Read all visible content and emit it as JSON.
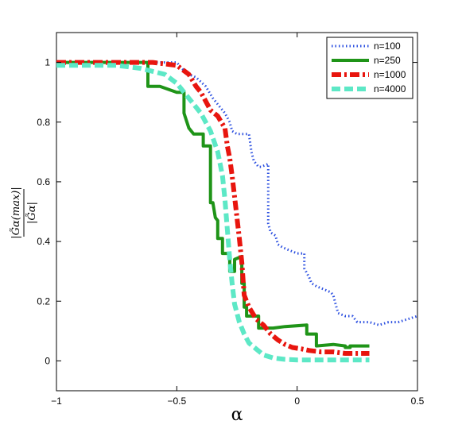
{
  "chart_data": {
    "type": "line",
    "title": "",
    "xlabel": "α",
    "ylabel": "|G̃α(max)| / |G̃α|",
    "xlim": [
      -1,
      0.5
    ],
    "ylim": [
      -0.1,
      1.1
    ],
    "xticks": [
      -1,
      -0.5,
      0,
      0.5
    ],
    "xtick_labels": [
      "−1",
      "−0.5",
      "0",
      "0.5"
    ],
    "yticks": [
      0,
      0.2,
      0.4,
      0.6,
      0.8,
      1
    ],
    "ytick_labels": [
      "0",
      "0.2",
      "0.4",
      "0.6",
      "0.8",
      "1"
    ],
    "grid": false,
    "legend_position": "top-right",
    "series": [
      {
        "name": "n=100",
        "color": "#2b4fe0",
        "style": "dotted",
        "points": [
          [
            -1.0,
            1.0
          ],
          [
            -0.5,
            1.0
          ],
          [
            -0.48,
            0.98
          ],
          [
            -0.45,
            0.96
          ],
          [
            -0.42,
            0.95
          ],
          [
            -0.38,
            0.92
          ],
          [
            -0.35,
            0.88
          ],
          [
            -0.32,
            0.85
          ],
          [
            -0.3,
            0.83
          ],
          [
            -0.28,
            0.8
          ],
          [
            -0.27,
            0.77
          ],
          [
            -0.25,
            0.76
          ],
          [
            -0.2,
            0.76
          ],
          [
            -0.19,
            0.7
          ],
          [
            -0.18,
            0.67
          ],
          [
            -0.17,
            0.66
          ],
          [
            -0.16,
            0.65
          ],
          [
            -0.15,
            0.65
          ],
          [
            -0.12,
            0.66
          ],
          [
            -0.12,
            0.46
          ],
          [
            -0.11,
            0.43
          ],
          [
            -0.09,
            0.42
          ],
          [
            -0.08,
            0.39
          ],
          [
            -0.06,
            0.38
          ],
          [
            -0.03,
            0.37
          ],
          [
            0.0,
            0.36
          ],
          [
            0.03,
            0.36
          ],
          [
            0.03,
            0.31
          ],
          [
            0.05,
            0.28
          ],
          [
            0.06,
            0.26
          ],
          [
            0.08,
            0.25
          ],
          [
            0.11,
            0.24
          ],
          [
            0.14,
            0.23
          ],
          [
            0.15,
            0.22
          ],
          [
            0.17,
            0.16
          ],
          [
            0.2,
            0.15
          ],
          [
            0.23,
            0.15
          ],
          [
            0.25,
            0.13
          ],
          [
            0.3,
            0.13
          ],
          [
            0.34,
            0.12
          ],
          [
            0.38,
            0.13
          ],
          [
            0.42,
            0.13
          ],
          [
            0.46,
            0.14
          ],
          [
            0.5,
            0.15
          ]
        ]
      },
      {
        "name": "n=250",
        "color": "#1f9418",
        "style": "solid",
        "points": [
          [
            -1.0,
            1.0
          ],
          [
            -0.62,
            1.0
          ],
          [
            -0.62,
            0.92
          ],
          [
            -0.57,
            0.92
          ],
          [
            -0.5,
            0.9
          ],
          [
            -0.47,
            0.9
          ],
          [
            -0.47,
            0.83
          ],
          [
            -0.45,
            0.78
          ],
          [
            -0.43,
            0.76
          ],
          [
            -0.39,
            0.76
          ],
          [
            -0.39,
            0.72
          ],
          [
            -0.36,
            0.72
          ],
          [
            -0.36,
            0.53
          ],
          [
            -0.35,
            0.53
          ],
          [
            -0.34,
            0.48
          ],
          [
            -0.33,
            0.47
          ],
          [
            -0.33,
            0.41
          ],
          [
            -0.31,
            0.41
          ],
          [
            -0.31,
            0.36
          ],
          [
            -0.28,
            0.36
          ],
          [
            -0.28,
            0.3
          ],
          [
            -0.26,
            0.3
          ],
          [
            -0.26,
            0.34
          ],
          [
            -0.23,
            0.35
          ],
          [
            -0.23,
            0.26
          ],
          [
            -0.22,
            0.26
          ],
          [
            -0.22,
            0.18
          ],
          [
            -0.21,
            0.18
          ],
          [
            -0.21,
            0.15
          ],
          [
            -0.16,
            0.15
          ],
          [
            -0.16,
            0.11
          ],
          [
            -0.1,
            0.11
          ],
          [
            -0.05,
            0.115
          ],
          [
            0.04,
            0.12
          ],
          [
            0.04,
            0.09
          ],
          [
            0.08,
            0.09
          ],
          [
            0.08,
            0.05
          ],
          [
            0.15,
            0.055
          ],
          [
            0.2,
            0.05
          ],
          [
            0.2,
            0.045
          ],
          [
            0.22,
            0.045
          ],
          [
            0.22,
            0.05
          ],
          [
            0.3,
            0.05
          ]
        ]
      },
      {
        "name": "n=1000",
        "color": "#e8150e",
        "style": "dashdot",
        "points": [
          [
            -1.0,
            1.0
          ],
          [
            -0.6,
            1.0
          ],
          [
            -0.5,
            0.99
          ],
          [
            -0.45,
            0.96
          ],
          [
            -0.42,
            0.92
          ],
          [
            -0.4,
            0.9
          ],
          [
            -0.38,
            0.87
          ],
          [
            -0.36,
            0.84
          ],
          [
            -0.33,
            0.82
          ],
          [
            -0.3,
            0.78
          ],
          [
            -0.29,
            0.72
          ],
          [
            -0.28,
            0.68
          ],
          [
            -0.27,
            0.62
          ],
          [
            -0.26,
            0.55
          ],
          [
            -0.25,
            0.48
          ],
          [
            -0.24,
            0.41
          ],
          [
            -0.23,
            0.33
          ],
          [
            -0.22,
            0.22
          ],
          [
            -0.2,
            0.18
          ],
          [
            -0.17,
            0.14
          ],
          [
            -0.14,
            0.12
          ],
          [
            -0.11,
            0.09
          ],
          [
            -0.08,
            0.07
          ],
          [
            -0.05,
            0.055
          ],
          [
            -0.02,
            0.045
          ],
          [
            0.02,
            0.04
          ],
          [
            0.05,
            0.035
          ],
          [
            0.1,
            0.03
          ],
          [
            0.15,
            0.03
          ],
          [
            0.2,
            0.025
          ],
          [
            0.25,
            0.025
          ],
          [
            0.3,
            0.025
          ]
        ]
      },
      {
        "name": "n=4000",
        "color": "#5de8c6",
        "style": "dashed",
        "points": [
          [
            -1.0,
            0.99
          ],
          [
            -0.75,
            0.99
          ],
          [
            -0.65,
            0.98
          ],
          [
            -0.55,
            0.96
          ],
          [
            -0.5,
            0.93
          ],
          [
            -0.45,
            0.88
          ],
          [
            -0.4,
            0.83
          ],
          [
            -0.36,
            0.77
          ],
          [
            -0.33,
            0.7
          ],
          [
            -0.31,
            0.62
          ],
          [
            -0.3,
            0.54
          ],
          [
            -0.29,
            0.44
          ],
          [
            -0.28,
            0.34
          ],
          [
            -0.27,
            0.26
          ],
          [
            -0.26,
            0.19
          ],
          [
            -0.24,
            0.13
          ],
          [
            -0.22,
            0.09
          ],
          [
            -0.2,
            0.06
          ],
          [
            -0.17,
            0.04
          ],
          [
            -0.14,
            0.02
          ],
          [
            -0.1,
            0.01
          ],
          [
            -0.05,
            0.005
          ],
          [
            0.0,
            0.003
          ],
          [
            0.1,
            0.003
          ],
          [
            0.2,
            0.003
          ],
          [
            0.3,
            0.003
          ]
        ]
      }
    ]
  }
}
